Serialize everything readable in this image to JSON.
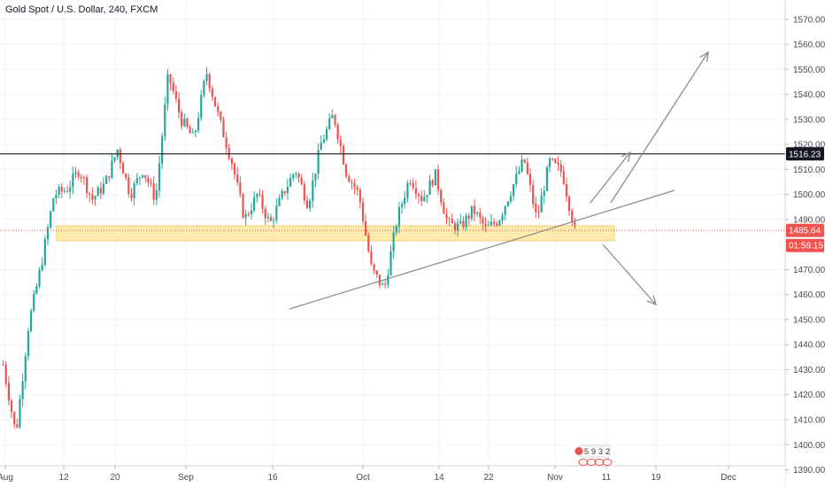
{
  "header": {
    "symbol_title": "Gold Spot / U.S. Dollar, 240, FXCM"
  },
  "colors": {
    "up": "#26a69a",
    "down": "#ef5350",
    "grid": "#f0f3fa",
    "axis_text": "#4a4a4a",
    "resistance_line": "#2b2b2b",
    "zone_fill": "#fde8a0",
    "zone_border": "#f5c45a",
    "trendline": "#8c8c8c",
    "price_dotted": "#ef5350",
    "tag_dark": "#131722",
    "tag_red": "#ef5350"
  },
  "price_axis": {
    "min": 1387,
    "max": 1577,
    "tick_labels": [
      "1570.00",
      "1560.00",
      "1550.00",
      "1540.00",
      "1530.00",
      "1520.00",
      "1510.00",
      "1500.00",
      "1490.00",
      "1470.00",
      "1460.00",
      "1450.00",
      "1440.00",
      "1430.00",
      "1420.00",
      "1410.00",
      "1400.00",
      "1390.00"
    ],
    "resistance_tag": "1516.23",
    "last_price_tag": "1485.64",
    "countdown_tag": "01:56:15"
  },
  "time_axis": {
    "tick_labels": [
      "Aug",
      "12",
      "20",
      "Sep",
      "16",
      "Oct",
      "14",
      "22",
      "Nov",
      "11",
      "19",
      "Dec"
    ]
  },
  "event_badge": {
    "digits": [
      "5",
      "9",
      "3",
      "2"
    ]
  },
  "chart_data": {
    "type": "candlestick",
    "title": "Gold Spot / U.S. Dollar, 240, FXCM",
    "xlabel": "",
    "ylabel": "",
    "ylim": [
      1387,
      1577
    ],
    "grid": true,
    "x_ticks": [
      "Aug",
      "12",
      "20",
      "Sep",
      "16",
      "Oct",
      "14",
      "22",
      "Nov",
      "11",
      "19",
      "Dec"
    ],
    "y_ticks": [
      1390,
      1400,
      1410,
      1420,
      1430,
      1440,
      1450,
      1460,
      1470,
      1490,
      1500,
      1510,
      1520,
      1530,
      1540,
      1550,
      1560,
      1570
    ],
    "horizontal_levels": [
      {
        "label": "1516.23",
        "price": 1516.23
      },
      {
        "label": "1485.64",
        "price": 1485.64
      }
    ],
    "support_zone": {
      "from_price": 1481.5,
      "to_price": 1487.5
    },
    "close_path": [
      {
        "x": "Aug",
        "close": 1432
      },
      {
        "x": "Aug",
        "close": 1404
      },
      {
        "x": "Aug",
        "close": 1448
      },
      {
        "x": "Aug",
        "close": 1472
      },
      {
        "x": "Aug",
        "close": 1500
      },
      {
        "x": "12",
        "close": 1502
      },
      {
        "x": "12",
        "close": 1510
      },
      {
        "x": "12",
        "close": 1498
      },
      {
        "x": "12",
        "close": 1504
      },
      {
        "x": "12",
        "close": 1518
      },
      {
        "x": "20",
        "close": 1500
      },
      {
        "x": "20",
        "close": 1510
      },
      {
        "x": "20",
        "close": 1498
      },
      {
        "x": "20",
        "close": 1548
      },
      {
        "x": "20",
        "close": 1530
      },
      {
        "x": "Sep",
        "close": 1522
      },
      {
        "x": "Sep",
        "close": 1549
      },
      {
        "x": "Sep",
        "close": 1530
      },
      {
        "x": "Sep",
        "close": 1513
      },
      {
        "x": "Sep",
        "close": 1490
      },
      {
        "x": "16",
        "close": 1500
      },
      {
        "x": "16",
        "close": 1488
      },
      {
        "x": "16",
        "close": 1500
      },
      {
        "x": "16",
        "close": 1510
      },
      {
        "x": "16",
        "close": 1496
      },
      {
        "x": "Oct",
        "close": 1520
      },
      {
        "x": "Oct",
        "close": 1532
      },
      {
        "x": "Oct",
        "close": 1509
      },
      {
        "x": "Oct",
        "close": 1500
      },
      {
        "x": "Oct",
        "close": 1470
      },
      {
        "x": "Oct",
        "close": 1462
      },
      {
        "x": "Oct",
        "close": 1490
      },
      {
        "x": "Oct",
        "close": 1507
      },
      {
        "x": "14",
        "close": 1498
      },
      {
        "x": "14",
        "close": 1508
      },
      {
        "x": "14",
        "close": 1488
      },
      {
        "x": "14",
        "close": 1487
      },
      {
        "x": "22",
        "close": 1494
      },
      {
        "x": "22",
        "close": 1486
      },
      {
        "x": "22",
        "close": 1490
      },
      {
        "x": "22",
        "close": 1502
      },
      {
        "x": "22",
        "close": 1514
      },
      {
        "x": "22",
        "close": 1490
      },
      {
        "x": "Nov",
        "close": 1513
      },
      {
        "x": "Nov",
        "close": 1509
      },
      {
        "x": "Nov",
        "close": 1485.64
      }
    ]
  }
}
